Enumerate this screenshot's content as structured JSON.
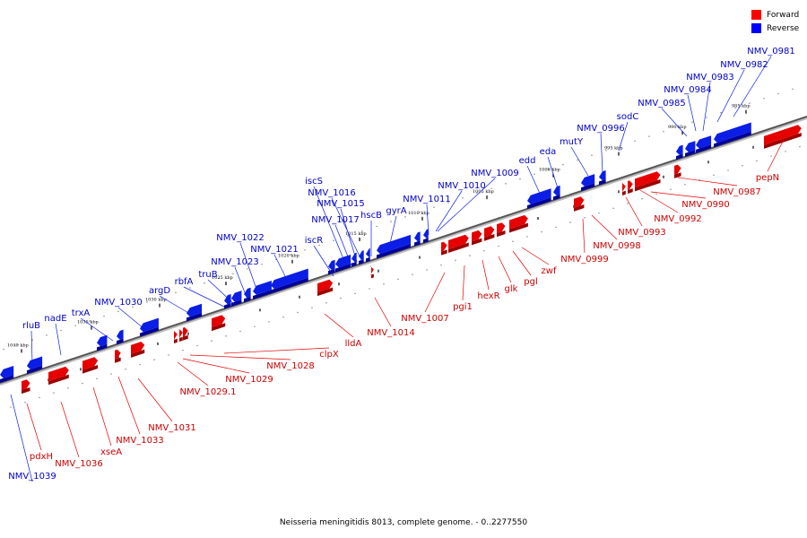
{
  "legend": {
    "forward_label": "Forward",
    "reverse_label": "Reverse",
    "forward_color": "#ff0000",
    "reverse_color": "#0000ff"
  },
  "caption": "Neisseria meningitidis 8013, complete genome. - 0..2277550",
  "colors": {
    "forward": "#e60000",
    "forward_dark": "#9a0000",
    "reverse": "#0a1ee6",
    "reverse_dark": "#000099",
    "axis": "#555555",
    "forward_label": "#cc0000",
    "reverse_label": "#0000cc"
  },
  "kbp_labels": [
    "1040 kbp",
    "1035 kbp",
    "1030 kbp",
    "1025 kbp",
    "1020 kbp",
    "1015 kbp",
    "1010 kbp",
    "1005 kbp",
    "1000 kbp",
    "995 kbp",
    "990 kbp",
    "985 kbp"
  ],
  "reverse_genes": [
    "rluB",
    "nadE",
    "trxA",
    "NMV_1030",
    "argD",
    "rbfA",
    "truB",
    "NMV_1023",
    "NMV_1022",
    "NMV_1021",
    "iscR",
    "NMV_1017",
    "NMV_1015",
    "NMV_1016",
    "iscS",
    "hscB",
    "gyrA",
    "NMV_1011",
    "NMV_1010",
    "NMV_1009",
    "edd",
    "eda",
    "mutY",
    "NMV_0996",
    "sodC",
    "NMV_0985",
    "NMV_0984",
    "NMV_0983",
    "NMV_0982",
    "NMV_0981",
    "NMV_1039"
  ],
  "forward_genes": [
    "pdxH",
    "NMV_1036",
    "xseA",
    "NMV_1033",
    "NMV_1031",
    "NMV_1029.1",
    "NMV_1029",
    "NMV_1028",
    "clpX",
    "lldA",
    "NMV_1014",
    "NMV_1007",
    "pgi1",
    "hexR",
    "glk",
    "pgl",
    "zwf",
    "NMV_0999",
    "NMV_0998",
    "NMV_0993",
    "NMV_0992",
    "NMV_0990",
    "NMV_0987",
    "pepN"
  ]
}
